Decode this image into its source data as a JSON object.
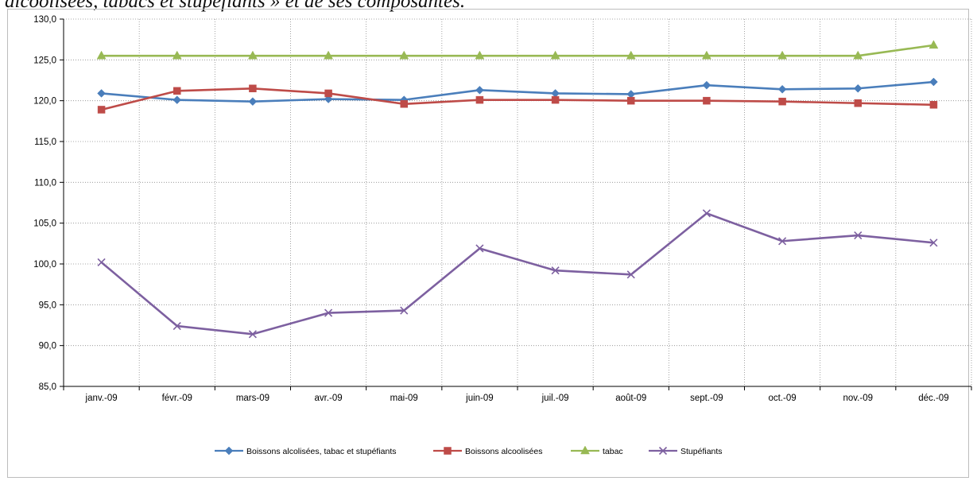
{
  "caption": "alcoolisées, tabacs et stupéfiants » et de ses composantes.",
  "chart_data": {
    "type": "line",
    "title": "",
    "xlabel": "",
    "ylabel": "",
    "ylim": [
      85,
      130
    ],
    "yticks": [
      85,
      90,
      95,
      100,
      105,
      110,
      115,
      120,
      125,
      130
    ],
    "y_tick_labels": [
      "85,0",
      "90,0",
      "95,0",
      "100,0",
      "105,0",
      "110,0",
      "115,0",
      "120,0",
      "125,0",
      "130,0"
    ],
    "grid": true,
    "legend_position": "bottom",
    "categories": [
      "janv.-09",
      "févr.-09",
      "mars-09",
      "avr.-09",
      "mai-09",
      "juin-09",
      "juil.-09",
      "août-09",
      "sept.-09",
      "oct.-09",
      "nov.-09",
      "déc.-09"
    ],
    "series": [
      {
        "name": "Boissons alcolisées, tabac et stupéfiants",
        "color": "#4a7ebb",
        "marker": "diamond",
        "values": [
          120.9,
          120.1,
          119.9,
          120.2,
          120.1,
          121.3,
          120.9,
          120.8,
          121.9,
          121.4,
          121.5,
          122.3
        ]
      },
      {
        "name": "Boissons alcoolisées",
        "color": "#be4b48",
        "marker": "square",
        "values": [
          118.9,
          121.2,
          121.5,
          120.9,
          119.6,
          120.1,
          120.1,
          120.0,
          120.0,
          119.9,
          119.7,
          119.5
        ]
      },
      {
        "name": "tabac",
        "color": "#98b954",
        "marker": "triangle",
        "values": [
          125.5,
          125.5,
          125.5,
          125.5,
          125.5,
          125.5,
          125.5,
          125.5,
          125.5,
          125.5,
          125.5,
          126.8
        ]
      },
      {
        "name": "Stupéfiants",
        "color": "#7d60a0",
        "marker": "x",
        "values": [
          100.2,
          92.4,
          91.4,
          94.0,
          94.3,
          101.9,
          99.2,
          98.7,
          106.2,
          102.8,
          103.5,
          102.6
        ]
      }
    ]
  }
}
